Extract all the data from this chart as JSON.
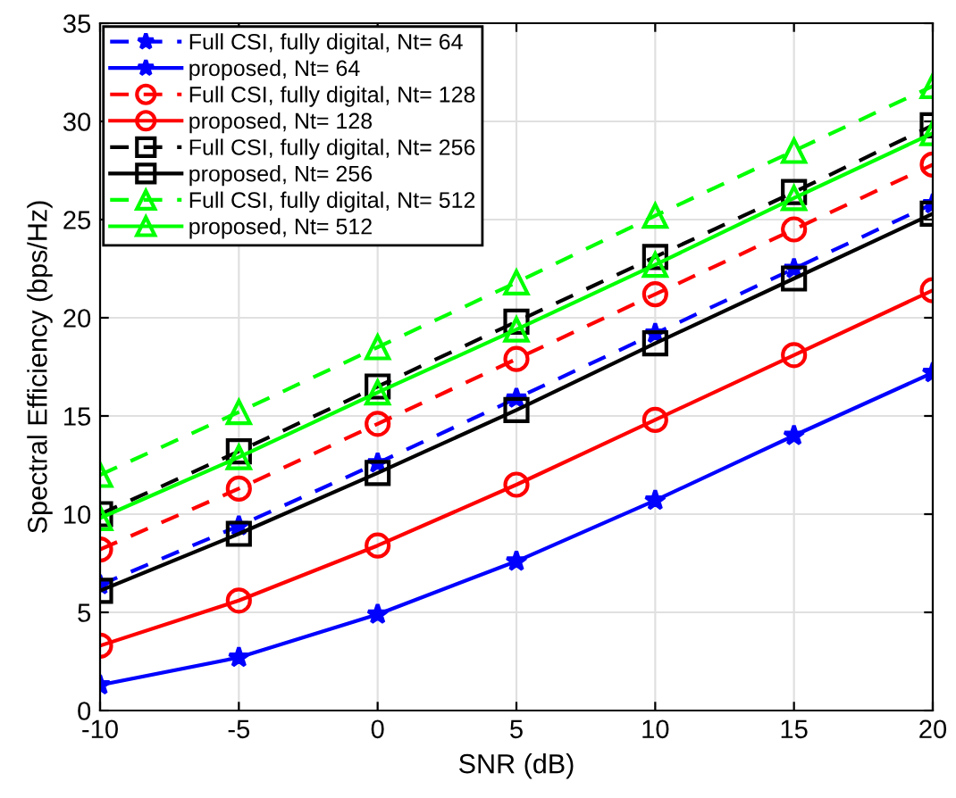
{
  "chart_data": {
    "type": "line",
    "xlabel": "SNR (dB)",
    "ylabel": "Spectral Efficiency (bps/Hz)",
    "x": [
      -10,
      -5,
      0,
      5,
      10,
      15,
      20
    ],
    "xlim": [
      -10,
      20
    ],
    "xticks": [
      -10,
      -5,
      0,
      5,
      10,
      15,
      20
    ],
    "ylim": [
      0,
      35
    ],
    "yticks": [
      0,
      5,
      10,
      15,
      20,
      25,
      30,
      35
    ],
    "grid": true,
    "legend": "top left",
    "series": [
      {
        "name": "Full CSI, fully digital, Nt= 64",
        "color": "#0000ff",
        "marker": "star",
        "line_style": "dashed",
        "values": [
          6.4,
          9.4,
          12.6,
          15.9,
          19.2,
          22.5,
          25.8
        ]
      },
      {
        "name": "proposed, Nt= 64",
        "color": "#0000ff",
        "marker": "star",
        "line_style": "solid",
        "values": [
          1.3,
          2.7,
          4.9,
          7.6,
          10.7,
          14.0,
          17.2
        ]
      },
      {
        "name": "Full CSI, fully digital, Nt= 128",
        "color": "#ff0000",
        "marker": "circle",
        "line_style": "dashed",
        "values": [
          8.2,
          11.3,
          14.6,
          17.9,
          21.2,
          24.5,
          27.8
        ]
      },
      {
        "name": "proposed, Nt= 128",
        "color": "#ff0000",
        "marker": "circle",
        "line_style": "solid",
        "values": [
          3.3,
          5.6,
          8.4,
          11.5,
          14.8,
          18.1,
          21.4
        ]
      },
      {
        "name": "Full CSI, fully digital, Nt= 256",
        "color": "#000000",
        "marker": "square",
        "line_style": "dashed",
        "values": [
          10.0,
          13.2,
          16.5,
          19.8,
          23.1,
          26.4,
          29.8
        ]
      },
      {
        "name": "proposed, Nt= 256",
        "color": "#000000",
        "marker": "square",
        "line_style": "solid",
        "values": [
          6.1,
          9.0,
          12.1,
          15.3,
          18.7,
          22.0,
          25.3
        ]
      },
      {
        "name": "Full CSI, fully digital, Nt= 512",
        "color": "#00ff00",
        "marker": "triangle",
        "line_style": "dashed",
        "values": [
          12.0,
          15.2,
          18.5,
          21.8,
          25.2,
          28.5,
          31.8
        ]
      },
      {
        "name": "proposed, Nt= 512",
        "color": "#00ff00",
        "marker": "triangle",
        "line_style": "solid",
        "values": [
          9.8,
          12.9,
          16.2,
          19.4,
          22.7,
          26.1,
          29.4
        ]
      }
    ]
  }
}
